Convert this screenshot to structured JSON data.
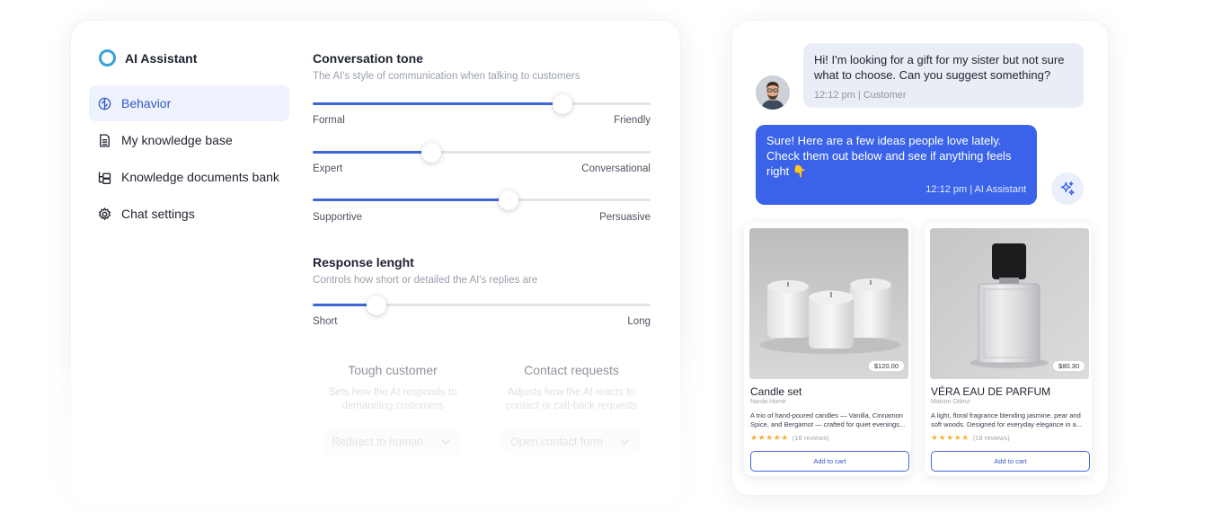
{
  "app": {
    "title": "AI Assistant"
  },
  "sidebar": {
    "items": [
      {
        "label": "Behavior",
        "icon": "brain-icon",
        "active": true
      },
      {
        "label": "My knowledge base",
        "icon": "document-icon",
        "active": false
      },
      {
        "label": "Knowledge documents bank",
        "icon": "folder-tree-icon",
        "active": false
      },
      {
        "label": "Chat settings",
        "icon": "gear-icon",
        "active": false
      }
    ]
  },
  "tone": {
    "title": "Conversation tone",
    "subtitle": "The AI's style of communication when talking to customers",
    "sliders": [
      {
        "left": "Formal",
        "right": "Friendly",
        "value": 0.74
      },
      {
        "left": "Expert",
        "right": "Conversational",
        "value": 0.35
      },
      {
        "left": "Supportive",
        "right": "Persuasive",
        "value": 0.58
      }
    ]
  },
  "length": {
    "title": "Response lenght",
    "subtitle": "Controls how short or detailed the AI's replies are",
    "slider": {
      "left": "Short",
      "right": "Long",
      "value": 0.19
    }
  },
  "cards": [
    {
      "title": "Tough customer",
      "desc_line1": "Sets how the AI responds to",
      "desc_line2": "demanding customers",
      "select": "Redirect to human"
    },
    {
      "title": "Contact requests",
      "desc_line1": "Adjusts how the AI reacts to",
      "desc_line2": "contact or call-back requests",
      "select": "Open contact form"
    }
  ],
  "chat": {
    "user_message": "Hi! I'm looking for a gift for my sister but not sure what to choose. Can you suggest something?",
    "user_meta": "12:12 pm | Customer",
    "ai_message": "Sure! Here are a few ideas people love lately. Check them out below and see if anything feels right 👇",
    "ai_meta": "12:12 pm | AI Assistant"
  },
  "products": [
    {
      "name": "Candle set",
      "brand": "Narda Home",
      "price": "$120.00",
      "desc": "A trio of hand-poured candles — Vanilla, Cinnamon Spice, and Bergamot — crafted for quiet evenings...",
      "stars": "★★★★★",
      "reviews": "(18 reviews)",
      "cta": "Add to cart"
    },
    {
      "name": "VÉRA EAU DE PARFUM",
      "brand": "Maison Odeur",
      "price": "$80.30",
      "desc": "A light, floral fragrance blending jasmine, pear and soft woods. Designed for everyday elegance in a...",
      "stars": "★★★★★",
      "reviews": "(18 reviews)",
      "cta": "Add to cart"
    }
  ],
  "colors": {
    "accent": "#3a63e9",
    "active_bg": "#eef2fc",
    "star": "#f2b53a"
  }
}
